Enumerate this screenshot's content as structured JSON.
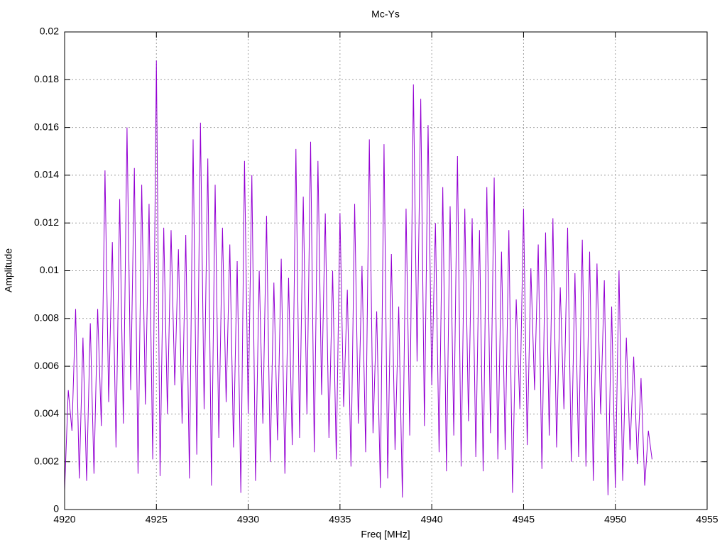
{
  "chart_data": {
    "type": "line",
    "title": "Mc-Ys",
    "xlabel": "Freq [MHz]",
    "ylabel": "Amplitude",
    "x": [
      4920,
      4920.2,
      4920.4,
      4920.6,
      4920.8,
      4921,
      4921.2,
      4921.4,
      4921.6,
      4921.8,
      4922,
      4922.2,
      4922.4,
      4922.6,
      4922.8,
      4923,
      4923.2,
      4923.4,
      4923.6,
      4923.8,
      4924,
      4924.2,
      4924.4,
      4924.6,
      4924.8,
      4925,
      4925.2,
      4925.4,
      4925.6,
      4925.8,
      4926,
      4926.2,
      4926.4,
      4926.6,
      4926.8,
      4927,
      4927.2,
      4927.4,
      4927.6,
      4927.8,
      4928,
      4928.2,
      4928.4,
      4928.6,
      4928.8,
      4929,
      4929.2,
      4929.4,
      4929.6,
      4929.8,
      4930,
      4930.2,
      4930.4,
      4930.6,
      4930.8,
      4931,
      4931.2,
      4931.4,
      4931.6,
      4931.8,
      4932,
      4932.2,
      4932.4,
      4932.6,
      4932.8,
      4933,
      4933.2,
      4933.4,
      4933.6,
      4933.8,
      4934,
      4934.2,
      4934.4,
      4934.6,
      4934.8,
      4935,
      4935.2,
      4935.4,
      4935.6,
      4935.8,
      4936,
      4936.2,
      4936.4,
      4936.6,
      4936.8,
      4937,
      4937.2,
      4937.4,
      4937.6,
      4937.8,
      4938,
      4938.2,
      4938.4,
      4938.6,
      4938.8,
      4939,
      4939.2,
      4939.4,
      4939.6,
      4939.8,
      4940,
      4940.2,
      4940.4,
      4940.6,
      4940.8,
      4941,
      4941.2,
      4941.4,
      4941.6,
      4941.8,
      4942,
      4942.2,
      4942.4,
      4942.6,
      4942.8,
      4943,
      4943.2,
      4943.4,
      4943.6,
      4943.8,
      4944,
      4944.2,
      4944.4,
      4944.6,
      4944.8,
      4945,
      4945.2,
      4945.4,
      4945.6,
      4945.8,
      4946,
      4946.2,
      4946.4,
      4946.6,
      4946.8,
      4947,
      4947.2,
      4947.4,
      4947.6,
      4947.8,
      4948,
      4948.2,
      4948.4,
      4948.6,
      4948.8,
      4949,
      4949.2,
      4949.4,
      4949.6,
      4949.8,
      4950,
      4950.2,
      4950.4,
      4950.6,
      4950.8,
      4951,
      4951.2,
      4951.4,
      4951.6,
      4951.8,
      4952
    ],
    "series": [
      {
        "color": "#9400d3",
        "values": [
          0.0008,
          0.005,
          0.0033,
          0.0084,
          0.0013,
          0.0072,
          0.0012,
          0.0078,
          0.0015,
          0.0084,
          0.0035,
          0.0142,
          0.0045,
          0.0112,
          0.0026,
          0.013,
          0.0036,
          0.016,
          0.005,
          0.0143,
          0.0015,
          0.0136,
          0.0044,
          0.0128,
          0.0021,
          0.0188,
          0.0014,
          0.0118,
          0.004,
          0.0117,
          0.0052,
          0.0109,
          0.0036,
          0.0115,
          0.0013,
          0.0155,
          0.0023,
          0.0162,
          0.0042,
          0.0147,
          0.001,
          0.0136,
          0.003,
          0.0118,
          0.0045,
          0.0111,
          0.0026,
          0.0104,
          0.0007,
          0.0146,
          0.004,
          0.014,
          0.0012,
          0.01,
          0.0036,
          0.0123,
          0.002,
          0.0095,
          0.0029,
          0.0105,
          0.0015,
          0.0097,
          0.0027,
          0.0151,
          0.003,
          0.0131,
          0.004,
          0.0154,
          0.0024,
          0.0146,
          0.0048,
          0.0124,
          0.003,
          0.01,
          0.0021,
          0.0124,
          0.0043,
          0.0092,
          0.0018,
          0.0128,
          0.0036,
          0.0102,
          0.0024,
          0.0155,
          0.0032,
          0.0083,
          0.0009,
          0.0153,
          0.0013,
          0.0107,
          0.0025,
          0.0085,
          0.0005,
          0.0126,
          0.0031,
          0.0178,
          0.0062,
          0.0172,
          0.0035,
          0.0161,
          0.0052,
          0.012,
          0.0024,
          0.0135,
          0.0016,
          0.0127,
          0.0031,
          0.0148,
          0.0018,
          0.0126,
          0.0037,
          0.0122,
          0.0022,
          0.0117,
          0.0016,
          0.0135,
          0.0032,
          0.0139,
          0.0021,
          0.0108,
          0.0025,
          0.0117,
          0.0007,
          0.0088,
          0.0042,
          0.0126,
          0.0027,
          0.0101,
          0.005,
          0.0111,
          0.0017,
          0.0116,
          0.0031,
          0.0122,
          0.0026,
          0.0093,
          0.0042,
          0.0118,
          0.002,
          0.0099,
          0.0022,
          0.0113,
          0.0018,
          0.0108,
          0.0012,
          0.0103,
          0.004,
          0.0096,
          0.0006,
          0.0085,
          0.0009,
          0.01,
          0.0012,
          0.0072,
          0.0025,
          0.0064,
          0.0019,
          0.0055,
          0.001,
          0.0033,
          0.0021
        ]
      }
    ],
    "xlim": [
      4920,
      4955
    ],
    "xticks": [
      4920,
      4925,
      4930,
      4935,
      4940,
      4945,
      4950,
      4955
    ],
    "ylim": [
      0,
      0.02
    ],
    "yticks": [
      0,
      0.002,
      0.004,
      0.006,
      0.008,
      0.01,
      0.012,
      0.014,
      0.016,
      0.018,
      0.02
    ],
    "grid": true
  }
}
